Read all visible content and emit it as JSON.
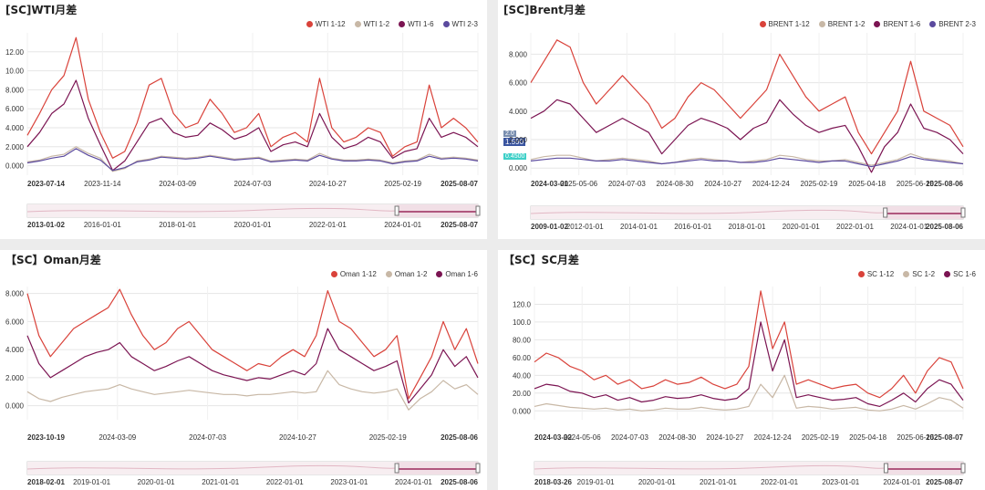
{
  "panels": [
    {
      "title": "[SC]WTI月差",
      "legend": [
        "WTI 1-12",
        "WTI 1-2",
        "WTI 1-6",
        "WTI 2-3"
      ],
      "range_ticks": [
        "2013-01-02",
        "2016-01-01",
        "2018-01-01",
        "2020-01-01",
        "2022-01-01",
        "2024-01-01",
        "2025-08-07"
      ]
    },
    {
      "title": "[SC]Brent月差",
      "legend": [
        "BRENT 1-12",
        "BRENT 1-2",
        "BRENT 1-6",
        "BRENT 2-3"
      ],
      "badges": [
        "2.0",
        "1.590",
        "0.4500"
      ],
      "range_ticks": [
        "2009-01-02",
        "2012-01-01",
        "2014-01-01",
        "2016-01-01",
        "2018-01-01",
        "2020-01-01",
        "2022-01-01",
        "2024-01-01",
        "2025-08-06"
      ]
    },
    {
      "title": "【SC】Oman月差",
      "legend": [
        "Oman 1-12",
        "Oman 1-2",
        "Oman 1-6"
      ],
      "range_ticks": [
        "2018-02-01",
        "2019-01-01",
        "2020-01-01",
        "2021-01-01",
        "2022-01-01",
        "2023-01-01",
        "2024-01-01",
        "2025-08-06"
      ]
    },
    {
      "title": "【SC】SC月差",
      "legend": [
        "SC 1-12",
        "SC 1-2",
        "SC 1-6"
      ],
      "range_ticks": [
        "2018-03-26",
        "2019-01-01",
        "2020-01-01",
        "2021-01-01",
        "2022-01-01",
        "2023-01-01",
        "2024-01-01",
        "2025-08-07"
      ]
    }
  ],
  "colors": {
    "c1": "#d9423a",
    "c2": "#c8b8a6",
    "c3": "#7b1452",
    "c4": "#5b4a9e"
  },
  "chart_data": [
    {
      "type": "line",
      "x_labels": [
        "2023-07-14",
        "2023-11-14",
        "2024-03-09",
        "2024-07-03",
        "2024-10-27",
        "2025-02-19",
        "2025-08-07"
      ],
      "y_ticks": [
        "0.000",
        "2.000",
        "4.000",
        "6.000",
        "8.000",
        "10.00",
        "12.00"
      ],
      "ylim": [
        -1,
        14
      ],
      "series": [
        {
          "name": "WTI 1-12",
          "values": [
            3.2,
            5.5,
            8.0,
            9.5,
            13.5,
            7.0,
            3.5,
            0.8,
            1.5,
            4.5,
            8.5,
            9.2,
            5.5,
            4.0,
            4.5,
            7.0,
            5.5,
            3.5,
            4.0,
            5.5,
            2.0,
            3.0,
            3.5,
            2.5,
            9.2,
            4.0,
            2.5,
            3.0,
            4.0,
            3.5,
            1.0,
            2.0,
            2.5,
            8.5,
            4.0,
            5.0,
            4.0,
            2.5
          ]
        },
        {
          "name": "WTI 1-2",
          "values": [
            0.4,
            0.6,
            1.0,
            1.2,
            2.0,
            1.3,
            0.8,
            -0.6,
            -0.3,
            0.5,
            0.7,
            1.0,
            0.9,
            0.8,
            0.9,
            1.1,
            0.9,
            0.7,
            0.8,
            0.9,
            0.5,
            0.6,
            0.7,
            0.6,
            1.3,
            0.8,
            0.6,
            0.6,
            0.7,
            0.6,
            0.3,
            0.5,
            0.6,
            1.2,
            0.8,
            0.9,
            0.8,
            0.6
          ]
        },
        {
          "name": "WTI 1-6",
          "values": [
            2.0,
            3.5,
            5.5,
            6.5,
            9.0,
            5.0,
            2.2,
            -0.5,
            0.5,
            2.5,
            4.5,
            5.0,
            3.5,
            3.0,
            3.2,
            4.5,
            3.8,
            2.8,
            3.2,
            4.0,
            1.5,
            2.2,
            2.5,
            2.0,
            5.5,
            3.0,
            1.8,
            2.2,
            3.0,
            2.5,
            0.8,
            1.5,
            1.8,
            5.0,
            3.0,
            3.5,
            3.0,
            2.0
          ]
        },
        {
          "name": "WTI 2-3",
          "values": [
            0.3,
            0.5,
            0.8,
            1.0,
            1.8,
            1.1,
            0.6,
            -0.5,
            -0.2,
            0.4,
            0.6,
            0.9,
            0.8,
            0.7,
            0.8,
            1.0,
            0.8,
            0.6,
            0.7,
            0.8,
            0.4,
            0.5,
            0.6,
            0.5,
            1.1,
            0.7,
            0.5,
            0.5,
            0.6,
            0.5,
            0.2,
            0.4,
            0.5,
            1.0,
            0.7,
            0.8,
            0.7,
            0.5
          ]
        }
      ]
    },
    {
      "type": "line",
      "x_labels": [
        "2024-03-01",
        "2025-05-06",
        "2024-07-03",
        "2024-08-30",
        "2024-10-27",
        "2024-12-24",
        "2025-02-19",
        "2025-04-18",
        "2025-06-15",
        "2025-08-06"
      ],
      "y_ticks": [
        "0.000",
        "2.000",
        "4.000",
        "6.000",
        "8.000"
      ],
      "ylim": [
        -0.5,
        9.5
      ],
      "series": [
        {
          "name": "BRENT 1-12",
          "values": [
            6.0,
            7.5,
            9.0,
            8.5,
            6.0,
            4.5,
            5.5,
            6.5,
            5.5,
            4.5,
            2.8,
            3.5,
            5.0,
            6.0,
            5.5,
            4.5,
            3.5,
            4.5,
            5.5,
            8.0,
            6.5,
            5.0,
            4.0,
            4.5,
            5.0,
            2.5,
            1.0,
            2.5,
            4.0,
            7.5,
            4.0,
            3.5,
            3.0,
            1.5
          ]
        },
        {
          "name": "BRENT 1-2",
          "values": [
            0.6,
            0.8,
            0.9,
            0.9,
            0.7,
            0.5,
            0.6,
            0.7,
            0.6,
            0.5,
            0.3,
            0.4,
            0.6,
            0.7,
            0.6,
            0.5,
            0.4,
            0.5,
            0.6,
            0.9,
            0.8,
            0.6,
            0.5,
            0.5,
            0.6,
            0.4,
            0.2,
            0.4,
            0.6,
            1.0,
            0.7,
            0.6,
            0.5,
            0.3
          ]
        },
        {
          "name": "BRENT 1-6",
          "values": [
            3.5,
            4.0,
            4.8,
            4.5,
            3.5,
            2.5,
            3.0,
            3.5,
            3.0,
            2.5,
            1.0,
            2.0,
            3.0,
            3.5,
            3.2,
            2.8,
            2.0,
            2.8,
            3.2,
            4.8,
            3.8,
            3.0,
            2.5,
            2.8,
            3.0,
            1.5,
            -0.3,
            1.5,
            2.5,
            4.5,
            2.8,
            2.5,
            2.0,
            1.0
          ]
        },
        {
          "name": "BRENT 2-3",
          "values": [
            0.5,
            0.6,
            0.7,
            0.7,
            0.6,
            0.5,
            0.5,
            0.6,
            0.5,
            0.4,
            0.3,
            0.4,
            0.5,
            0.6,
            0.5,
            0.5,
            0.4,
            0.4,
            0.5,
            0.7,
            0.6,
            0.5,
            0.4,
            0.5,
            0.5,
            0.3,
            0.1,
            0.3,
            0.5,
            0.8,
            0.6,
            0.5,
            0.4,
            0.3
          ]
        }
      ]
    },
    {
      "type": "line",
      "x_labels": [
        "2023-10-19",
        "2024-03-09",
        "2024-07-03",
        "2024-10-27",
        "2025-02-19",
        "2025-08-06"
      ],
      "y_ticks": [
        "0.000",
        "2.000",
        "4.000",
        "6.000",
        "8.000"
      ],
      "ylim": [
        -1,
        8.5
      ],
      "series": [
        {
          "name": "Oman 1-12",
          "values": [
            8.0,
            5.0,
            3.5,
            4.5,
            5.5,
            6.0,
            6.5,
            7.0,
            8.3,
            6.5,
            5.0,
            4.0,
            4.5,
            5.5,
            6.0,
            5.0,
            4.0,
            3.5,
            3.0,
            2.5,
            3.0,
            2.8,
            3.5,
            4.0,
            3.5,
            5.0,
            8.2,
            6.0,
            5.5,
            4.5,
            3.5,
            4.0,
            5.0,
            0.5,
            2.0,
            3.5,
            6.0,
            4.0,
            5.5,
            3.0
          ]
        },
        {
          "name": "Oman 1-2",
          "values": [
            1.0,
            0.5,
            0.3,
            0.6,
            0.8,
            1.0,
            1.1,
            1.2,
            1.5,
            1.2,
            1.0,
            0.8,
            0.9,
            1.0,
            1.1,
            1.0,
            0.9,
            0.8,
            0.8,
            0.7,
            0.8,
            0.8,
            0.9,
            1.0,
            0.9,
            1.0,
            2.5,
            1.5,
            1.2,
            1.0,
            0.9,
            1.0,
            1.2,
            -0.3,
            0.5,
            1.0,
            1.8,
            1.2,
            1.5,
            0.8
          ]
        },
        {
          "name": "Oman 1-6",
          "values": [
            5.0,
            3.0,
            2.0,
            2.5,
            3.0,
            3.5,
            3.8,
            4.0,
            4.5,
            3.5,
            3.0,
            2.5,
            2.8,
            3.2,
            3.5,
            3.0,
            2.5,
            2.2,
            2.0,
            1.8,
            2.0,
            1.9,
            2.2,
            2.5,
            2.2,
            3.0,
            5.5,
            4.0,
            3.5,
            3.0,
            2.5,
            2.8,
            3.2,
            0.2,
            1.2,
            2.2,
            4.0,
            2.8,
            3.5,
            2.0
          ]
        }
      ]
    },
    {
      "type": "line",
      "x_labels": [
        "2024-03-02",
        "2024-05-06",
        "2024-07-03",
        "2024-08-30",
        "2024-10-27",
        "2024-12-24",
        "2025-02-19",
        "2025-04-18",
        "2025-06-15",
        "2025-08-07"
      ],
      "y_ticks": [
        "0.000",
        "20.00",
        "40.00",
        "60.00",
        "80.00",
        "100.0",
        "120.0"
      ],
      "ylim": [
        -10,
        140
      ],
      "series": [
        {
          "name": "SC 1-12",
          "values": [
            55,
            65,
            60,
            50,
            45,
            35,
            40,
            30,
            35,
            25,
            28,
            35,
            30,
            32,
            38,
            30,
            25,
            30,
            50,
            135,
            70,
            100,
            30,
            35,
            30,
            25,
            28,
            30,
            20,
            15,
            25,
            40,
            20,
            45,
            60,
            55,
            25
          ]
        },
        {
          "name": "SC 1-2",
          "values": [
            5,
            8,
            6,
            4,
            3,
            2,
            3,
            1,
            2,
            0,
            1,
            3,
            2,
            2,
            4,
            2,
            1,
            2,
            5,
            30,
            15,
            40,
            3,
            5,
            4,
            2,
            3,
            4,
            1,
            0,
            2,
            6,
            2,
            8,
            15,
            12,
            3
          ]
        },
        {
          "name": "SC 1-6",
          "values": [
            25,
            30,
            28,
            22,
            20,
            15,
            18,
            12,
            15,
            10,
            12,
            16,
            14,
            15,
            18,
            14,
            12,
            14,
            25,
            100,
            45,
            80,
            15,
            18,
            15,
            12,
            13,
            15,
            8,
            5,
            12,
            20,
            10,
            25,
            35,
            30,
            12
          ]
        }
      ]
    }
  ]
}
